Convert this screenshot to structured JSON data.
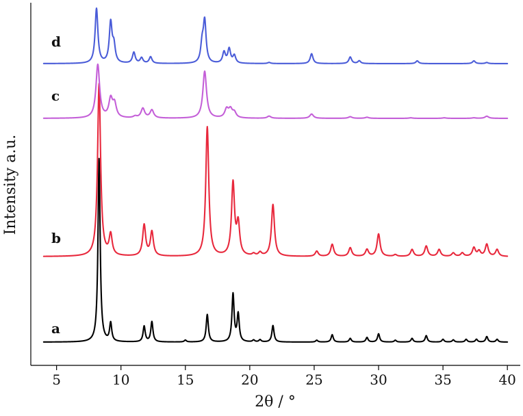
{
  "chart_data": {
    "type": "line",
    "xlabel": "2θ / °",
    "ylabel": "Intensity a.u.",
    "xlim": [
      3,
      41
    ],
    "x_ticks": [
      5,
      10,
      15,
      20,
      25,
      30,
      35,
      40
    ],
    "x_tick_labels": [
      "5",
      "10",
      "15",
      "20",
      "25",
      "30",
      "35",
      "40"
    ],
    "grid": false,
    "legend": "none",
    "series": [
      {
        "name": "a",
        "color": "#000000",
        "x_range": [
          4,
          40
        ],
        "peaks": [
          [
            8.3,
            1.0,
            0.1
          ],
          [
            9.2,
            0.1,
            0.1
          ],
          [
            11.8,
            0.085,
            0.1
          ],
          [
            12.4,
            0.11,
            0.1
          ],
          [
            15.0,
            0.01,
            0.1
          ],
          [
            16.7,
            0.15,
            0.1
          ],
          [
            18.7,
            0.26,
            0.1
          ],
          [
            19.1,
            0.15,
            0.1
          ],
          [
            20.3,
            0.01,
            0.1
          ],
          [
            20.8,
            0.012,
            0.1
          ],
          [
            21.8,
            0.09,
            0.1
          ],
          [
            25.2,
            0.01,
            0.1
          ],
          [
            26.4,
            0.04,
            0.1
          ],
          [
            27.8,
            0.02,
            0.1
          ],
          [
            29.1,
            0.025,
            0.1
          ],
          [
            30.0,
            0.045,
            0.1
          ],
          [
            31.3,
            0.01,
            0.1
          ],
          [
            32.6,
            0.02,
            0.1
          ],
          [
            33.7,
            0.035,
            0.1
          ],
          [
            35.0,
            0.015,
            0.1
          ],
          [
            35.8,
            0.012,
            0.1
          ],
          [
            36.8,
            0.015,
            0.1
          ],
          [
            37.6,
            0.015,
            0.1
          ],
          [
            38.4,
            0.03,
            0.1
          ],
          [
            39.2,
            0.015,
            0.1
          ]
        ]
      },
      {
        "name": "b",
        "color": "#e8283c",
        "x_range": [
          4,
          40
        ],
        "peaks": [
          [
            8.3,
            1.0,
            0.14
          ],
          [
            9.2,
            0.12,
            0.14
          ],
          [
            11.8,
            0.18,
            0.14
          ],
          [
            12.4,
            0.14,
            0.14
          ],
          [
            16.7,
            0.75,
            0.14
          ],
          [
            18.7,
            0.42,
            0.14
          ],
          [
            19.1,
            0.18,
            0.14
          ],
          [
            20.3,
            0.012,
            0.14
          ],
          [
            20.8,
            0.02,
            0.14
          ],
          [
            21.8,
            0.3,
            0.14
          ],
          [
            25.2,
            0.03,
            0.14
          ],
          [
            26.4,
            0.07,
            0.14
          ],
          [
            27.8,
            0.05,
            0.14
          ],
          [
            29.1,
            0.04,
            0.14
          ],
          [
            30.0,
            0.13,
            0.14
          ],
          [
            31.3,
            0.01,
            0.14
          ],
          [
            32.6,
            0.04,
            0.14
          ],
          [
            33.7,
            0.06,
            0.14
          ],
          [
            34.7,
            0.04,
            0.14
          ],
          [
            35.8,
            0.02,
            0.14
          ],
          [
            36.5,
            0.02,
            0.14
          ],
          [
            37.4,
            0.05,
            0.14
          ],
          [
            37.8,
            0.03,
            0.14
          ],
          [
            38.4,
            0.07,
            0.14
          ],
          [
            39.2,
            0.04,
            0.14
          ]
        ]
      },
      {
        "name": "c",
        "color": "#c45fd8",
        "x_range": [
          4,
          40
        ],
        "peaks": [
          [
            8.2,
            1.0,
            0.17
          ],
          [
            9.2,
            0.34,
            0.17
          ],
          [
            9.5,
            0.25,
            0.17
          ],
          [
            11.1,
            0.03,
            0.17
          ],
          [
            11.7,
            0.18,
            0.17
          ],
          [
            12.4,
            0.15,
            0.17
          ],
          [
            16.5,
            0.88,
            0.17
          ],
          [
            18.2,
            0.16,
            0.17
          ],
          [
            18.5,
            0.15,
            0.17
          ],
          [
            18.8,
            0.1,
            0.17
          ],
          [
            21.5,
            0.04,
            0.17
          ],
          [
            24.8,
            0.08,
            0.17
          ],
          [
            27.8,
            0.03,
            0.17
          ],
          [
            29.1,
            0.02,
            0.17
          ],
          [
            32.5,
            0.01,
            0.17
          ],
          [
            35.1,
            0.01,
            0.17
          ],
          [
            37.4,
            0.01,
            0.17
          ],
          [
            38.4,
            0.04,
            0.17
          ]
        ]
      },
      {
        "name": "d",
        "color": "#4a5cd8",
        "x_range": [
          4,
          40
        ],
        "peaks": [
          [
            8.1,
            1.0,
            0.13
          ],
          [
            9.2,
            0.73,
            0.13
          ],
          [
            9.45,
            0.3,
            0.13
          ],
          [
            11.0,
            0.2,
            0.13
          ],
          [
            11.6,
            0.1,
            0.13
          ],
          [
            12.3,
            0.12,
            0.13
          ],
          [
            16.3,
            0.32,
            0.13
          ],
          [
            16.5,
            0.75,
            0.13
          ],
          [
            18.0,
            0.2,
            0.13
          ],
          [
            18.4,
            0.26,
            0.13
          ],
          [
            18.8,
            0.14,
            0.13
          ],
          [
            21.5,
            0.02,
            0.13
          ],
          [
            24.8,
            0.18,
            0.13
          ],
          [
            27.8,
            0.12,
            0.13
          ],
          [
            28.5,
            0.05,
            0.13
          ],
          [
            33.0,
            0.05,
            0.13
          ],
          [
            37.4,
            0.05,
            0.13
          ],
          [
            38.4,
            0.02,
            0.13
          ]
        ]
      }
    ]
  }
}
